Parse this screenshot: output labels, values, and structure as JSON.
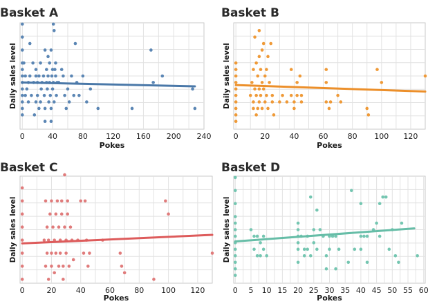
{
  "chart_data": [
    {
      "type": "scatter",
      "title": "Basket A",
      "xlabel": "Pokes",
      "ylabel": "Daily sales level",
      "xlim": [
        -3,
        240
      ],
      "ylim": [
        -0.3,
        7.9
      ],
      "xticks": [
        0,
        40,
        80,
        120,
        160,
        200,
        240
      ],
      "xtick_labels": [
        "0",
        "40",
        "80",
        "120",
        "160",
        "200",
        "240"
      ],
      "y_ticks_shown": false,
      "color": "#5b86b4",
      "trend_color": "#4a78a8",
      "trendline": {
        "x": [
          0,
          228
        ],
        "y": [
          3.3,
          3.0
        ]
      },
      "points": [
        [
          0,
          7.8
        ],
        [
          0,
          6.8
        ],
        [
          0,
          5.8
        ],
        [
          0,
          4.8
        ],
        [
          0,
          4.3
        ],
        [
          0,
          3.8
        ],
        [
          0,
          3.3
        ],
        [
          0,
          2.8
        ],
        [
          0,
          2.3
        ],
        [
          0,
          1.8
        ],
        [
          0,
          1.3
        ],
        [
          0,
          0.8
        ],
        [
          2,
          4.8
        ],
        [
          4,
          3.8
        ],
        [
          4,
          2.3
        ],
        [
          6,
          2.8
        ],
        [
          8,
          3.3
        ],
        [
          8,
          1.8
        ],
        [
          10,
          3.8
        ],
        [
          10,
          6.3
        ],
        [
          12,
          2.3
        ],
        [
          14,
          4.8
        ],
        [
          15,
          3.3
        ],
        [
          16,
          0.8
        ],
        [
          18,
          4.3
        ],
        [
          18,
          1.8
        ],
        [
          18,
          3.8
        ],
        [
          20,
          3.3
        ],
        [
          20,
          2.3
        ],
        [
          22,
          1.3
        ],
        [
          22,
          3.8
        ],
        [
          24,
          4.8
        ],
        [
          24,
          1.8
        ],
        [
          25,
          2.8
        ],
        [
          26,
          3.3
        ],
        [
          28,
          3.8
        ],
        [
          29,
          2.3
        ],
        [
          30,
          5.8
        ],
        [
          30,
          1.3
        ],
        [
          30,
          0.3
        ],
        [
          32,
          4.3
        ],
        [
          32,
          3.3
        ],
        [
          33,
          2.8
        ],
        [
          34,
          3.8
        ],
        [
          34,
          5.3
        ],
        [
          35,
          1.8
        ],
        [
          36,
          4.8
        ],
        [
          36,
          3.3
        ],
        [
          37,
          2.3
        ],
        [
          38,
          5.8
        ],
        [
          38,
          0.3
        ],
        [
          38,
          1.3
        ],
        [
          39,
          3.8
        ],
        [
          40,
          4.3
        ],
        [
          40,
          2.8
        ],
        [
          41,
          7.8
        ],
        [
          41,
          3.3
        ],
        [
          42,
          7.3
        ],
        [
          42,
          1.8
        ],
        [
          43,
          4.3
        ],
        [
          44,
          3.8
        ],
        [
          44,
          4.8
        ],
        [
          45,
          2.3
        ],
        [
          46,
          3.3
        ],
        [
          48,
          3.3
        ],
        [
          52,
          4.3
        ],
        [
          54,
          3.8
        ],
        [
          56,
          2.3
        ],
        [
          58,
          1.3
        ],
        [
          60,
          2.8
        ],
        [
          62,
          1.8
        ],
        [
          65,
          3.8
        ],
        [
          68,
          2.3
        ],
        [
          70,
          6.3
        ],
        [
          72,
          3.3
        ],
        [
          75,
          2.3
        ],
        [
          80,
          3.8
        ],
        [
          85,
          1.8
        ],
        [
          90,
          2.8
        ],
        [
          100,
          1.3
        ],
        [
          145,
          1.3
        ],
        [
          170,
          5.8
        ],
        [
          173,
          3.3
        ],
        [
          185,
          3.8
        ],
        [
          225,
          2.8
        ],
        [
          228,
          1.3
        ]
      ]
    },
    {
      "type": "scatter",
      "title": "Basket B",
      "xlabel": "Pokes",
      "ylabel": "Daily sales level",
      "xlim": [
        -1.5,
        130
      ],
      "ylim": [
        -0.3,
        7.9
      ],
      "xticks": [
        0,
        20,
        40,
        60,
        80,
        100,
        120
      ],
      "xtick_labels": [
        "0",
        "20",
        "40",
        "60",
        "80",
        "100",
        "120"
      ],
      "y_ticks_shown": false,
      "color": "#ef9a38",
      "trend_color": "#ec8f2a",
      "trendline": {
        "x": [
          0,
          130
        ],
        "y": [
          3.1,
          2.6
        ]
      },
      "points": [
        [
          0,
          4.8
        ],
        [
          0,
          4.3
        ],
        [
          0,
          3.8
        ],
        [
          0,
          3.3
        ],
        [
          0,
          2.8
        ],
        [
          0,
          2.3
        ],
        [
          0,
          1.8
        ],
        [
          0,
          1.3
        ],
        [
          0,
          0.8
        ],
        [
          0,
          0.3
        ],
        [
          10,
          2.3
        ],
        [
          11,
          3.3
        ],
        [
          12,
          4.3
        ],
        [
          12,
          1.3
        ],
        [
          12,
          1.8
        ],
        [
          13,
          2.8
        ],
        [
          13,
          6.8
        ],
        [
          14,
          4.8
        ],
        [
          14,
          2.3
        ],
        [
          14,
          0.8
        ],
        [
          15,
          3.8
        ],
        [
          15,
          1.3
        ],
        [
          16,
          7.3
        ],
        [
          16,
          5.3
        ],
        [
          16,
          2.8
        ],
        [
          16,
          1.8
        ],
        [
          17,
          4.3
        ],
        [
          17,
          2.3
        ],
        [
          18,
          3.3
        ],
        [
          18,
          1.3
        ],
        [
          18,
          5.8
        ],
        [
          19,
          2.8
        ],
        [
          19,
          6.3
        ],
        [
          20,
          3.8
        ],
        [
          20,
          1.8
        ],
        [
          21,
          4.3
        ],
        [
          21,
          2.3
        ],
        [
          22,
          5.3
        ],
        [
          22,
          1.3
        ],
        [
          23,
          3.3
        ],
        [
          24,
          6.3
        ],
        [
          25,
          2.3
        ],
        [
          25,
          1.8
        ],
        [
          26,
          0.8
        ],
        [
          30,
          1.8
        ],
        [
          32,
          2.3
        ],
        [
          35,
          1.8
        ],
        [
          38,
          2.3
        ],
        [
          38,
          4.3
        ],
        [
          40,
          1.3
        ],
        [
          40,
          1.8
        ],
        [
          42,
          3.3
        ],
        [
          42,
          2.3
        ],
        [
          44,
          3.8
        ],
        [
          45,
          1.8
        ],
        [
          45,
          2.3
        ],
        [
          62,
          4.3
        ],
        [
          62,
          3.3
        ],
        [
          62,
          1.8
        ],
        [
          64,
          1.3
        ],
        [
          65,
          1.8
        ],
        [
          70,
          2.3
        ],
        [
          72,
          1.8
        ],
        [
          90,
          1.3
        ],
        [
          91,
          0.8
        ],
        [
          97,
          4.3
        ],
        [
          100,
          3.3
        ],
        [
          130,
          3.8
        ]
      ]
    },
    {
      "type": "scatter",
      "title": "Basket C",
      "xlabel": "Pokes",
      "ylabel": "Daily sales level",
      "xlim": [
        -1.5,
        130
      ],
      "ylim": [
        -0.3,
        7.9
      ],
      "xticks": [
        0,
        20,
        40,
        60,
        80,
        100,
        120
      ],
      "xtick_labels": [
        "0",
        "20",
        "40",
        "60",
        "80",
        "100",
        "120"
      ],
      "y_ticks_shown": false,
      "color": "#e07b7b",
      "trend_color": "#dd5b5b",
      "trendline": {
        "x": [
          0,
          130
        ],
        "y": [
          2.75,
          3.4
        ]
      },
      "points": [
        [
          0,
          7.0
        ],
        [
          0,
          6.0
        ],
        [
          0,
          5.0
        ],
        [
          0,
          4.0
        ],
        [
          0,
          3.0
        ],
        [
          0,
          2.0
        ],
        [
          0,
          1.0
        ],
        [
          0,
          0.0
        ],
        [
          15,
          3.0
        ],
        [
          16,
          6.0
        ],
        [
          16,
          1.0
        ],
        [
          17,
          2.0
        ],
        [
          17,
          4.0
        ],
        [
          18,
          3.0
        ],
        [
          18,
          0.0
        ],
        [
          19,
          5.0
        ],
        [
          20,
          2.0
        ],
        [
          20,
          1.0
        ],
        [
          20,
          6.0
        ],
        [
          21,
          4.0
        ],
        [
          22,
          3.0
        ],
        [
          22,
          0.5
        ],
        [
          23,
          5.0
        ],
        [
          23,
          2.0
        ],
        [
          24,
          6.0
        ],
        [
          25,
          1.0
        ],
        [
          25,
          4.0
        ],
        [
          26,
          3.0
        ],
        [
          26,
          2.0
        ],
        [
          27,
          5.0
        ],
        [
          27,
          6.0
        ],
        [
          28,
          1.0
        ],
        [
          28,
          0.0
        ],
        [
          29,
          4.0
        ],
        [
          29,
          8.0
        ],
        [
          30,
          3.0
        ],
        [
          30,
          2.0
        ],
        [
          31,
          5.0
        ],
        [
          31,
          6.0
        ],
        [
          32,
          1.0
        ],
        [
          33,
          4.0
        ],
        [
          34,
          3.0
        ],
        [
          35,
          1.5
        ],
        [
          38,
          3.0
        ],
        [
          40,
          6.0
        ],
        [
          42,
          2.0
        ],
        [
          43,
          6.0
        ],
        [
          44,
          3.0
        ],
        [
          45,
          1.0
        ],
        [
          46,
          2.0
        ],
        [
          55,
          3.0
        ],
        [
          67,
          2.0
        ],
        [
          68,
          1.0
        ],
        [
          70,
          0.5
        ],
        [
          90,
          0.0
        ],
        [
          98,
          6.0
        ],
        [
          100,
          5.0
        ],
        [
          130,
          2.0
        ]
      ]
    },
    {
      "type": "scatter",
      "title": "Basket D",
      "xlabel": "Pokes",
      "ylabel": "Daily sales level",
      "xlim": [
        -0.5,
        60.5
      ],
      "ylim": [
        -0.3,
        7.9
      ],
      "xticks": [
        0,
        5,
        10,
        15,
        20,
        25,
        30,
        35,
        40,
        45,
        50,
        55,
        60
      ],
      "xtick_labels": [
        "0",
        "5",
        "10",
        "15",
        "20",
        "25",
        "30",
        "35",
        "40",
        "45",
        "50",
        "55",
        "60"
      ],
      "y_ticks_shown": false,
      "color": "#74c6b1",
      "trend_color": "#66bda7",
      "trendline": {
        "x": [
          0,
          57
        ],
        "y": [
          2.9,
          3.9
        ]
      },
      "points": [
        [
          0,
          7.8
        ],
        [
          0,
          6.8
        ],
        [
          0,
          5.8
        ],
        [
          0,
          4.8
        ],
        [
          0,
          4.3
        ],
        [
          0,
          3.8
        ],
        [
          0,
          3.3
        ],
        [
          0,
          2.8
        ],
        [
          0,
          2.3
        ],
        [
          0,
          1.8
        ],
        [
          0,
          1.3
        ],
        [
          0,
          0.8
        ],
        [
          0,
          0.3
        ],
        [
          5,
          3.8
        ],
        [
          6,
          3.3
        ],
        [
          6,
          2.3
        ],
        [
          7,
          1.8
        ],
        [
          7,
          3.3
        ],
        [
          8,
          2.8
        ],
        [
          8,
          1.8
        ],
        [
          9,
          3.3
        ],
        [
          9,
          2.3
        ],
        [
          10,
          1.8
        ],
        [
          20,
          4.3
        ],
        [
          20,
          3.8
        ],
        [
          20,
          3.3
        ],
        [
          20,
          2.8
        ],
        [
          20,
          2.3
        ],
        [
          20,
          1.3
        ],
        [
          21,
          3.3
        ],
        [
          22,
          1.8
        ],
        [
          22,
          2.3
        ],
        [
          23,
          3.3
        ],
        [
          23,
          2.3
        ],
        [
          24,
          6.3
        ],
        [
          24,
          1.8
        ],
        [
          25,
          2.8
        ],
        [
          25,
          3.8
        ],
        [
          26,
          5.3
        ],
        [
          26,
          2.3
        ],
        [
          27,
          3.8
        ],
        [
          28,
          3.3
        ],
        [
          29,
          1.8
        ],
        [
          29,
          0.8
        ],
        [
          30,
          3.3
        ],
        [
          30,
          2.3
        ],
        [
          31,
          3.3
        ],
        [
          32,
          3.3
        ],
        [
          32,
          0.8
        ],
        [
          33,
          2.3
        ],
        [
          36,
          1.3
        ],
        [
          37,
          6.8
        ],
        [
          38,
          2.3
        ],
        [
          40,
          5.8
        ],
        [
          40,
          3.3
        ],
        [
          40,
          2.3
        ],
        [
          41,
          3.3
        ],
        [
          42,
          3.3
        ],
        [
          42,
          1.3
        ],
        [
          44,
          3.8
        ],
        [
          45,
          4.3
        ],
        [
          46,
          5.8
        ],
        [
          46,
          3.3
        ],
        [
          47,
          6.3
        ],
        [
          48,
          6.3
        ],
        [
          49,
          2.3
        ],
        [
          50,
          3.8
        ],
        [
          51,
          1.8
        ],
        [
          52,
          1.3
        ],
        [
          53,
          4.3
        ],
        [
          58,
          1.8
        ]
      ]
    }
  ]
}
